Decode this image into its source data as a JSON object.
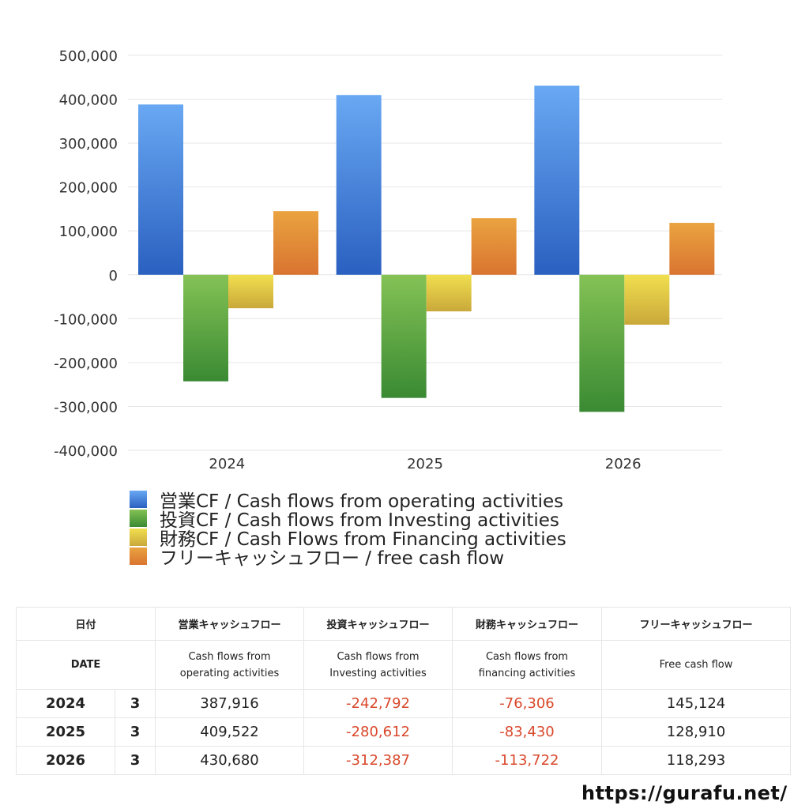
{
  "chart_data": {
    "type": "bar",
    "categories": [
      "2024",
      "2025",
      "2026"
    ],
    "series": [
      {
        "name": "営業CF / Cash flows from operating activities",
        "values": [
          387916,
          409522,
          430680
        ],
        "color_top": "#69a8f3",
        "color_bottom": "#2a60c0"
      },
      {
        "name": "投資CF / Cash flows from Investing activities",
        "values": [
          -242792,
          -280612,
          -312387
        ],
        "color_top": "#84c255",
        "color_bottom": "#3a8a33"
      },
      {
        "name": "財務CF / Cash Flows from Financing activities",
        "values": [
          -76306,
          -83430,
          -113722
        ],
        "color_top": "#f1df4f",
        "color_bottom": "#c9a83a"
      },
      {
        "name": "フリーキャッシュフロー / free cash flow",
        "values": [
          145124,
          128910,
          118293
        ],
        "color_top": "#eaa340",
        "color_bottom": "#d97430"
      }
    ],
    "ylim": [
      -400000,
      500000
    ],
    "yticks": [
      "500,000",
      "400,000",
      "300,000",
      "200,000",
      "100,000",
      "0",
      "-100,000",
      "-200,000",
      "-300,000",
      "-400,000"
    ],
    "ytick_values": [
      500000,
      400000,
      300000,
      200000,
      100000,
      0,
      -100000,
      -200000,
      -300000,
      -400000
    ],
    "grid": true,
    "legend_position": "bottom-left",
    "xlabel": "",
    "ylabel": "",
    "title": ""
  },
  "table": {
    "header_jp": [
      "日付",
      "営業キャッシュフロー",
      "投資キャッシュフロー",
      "財務キャッシュフロー",
      "フリーキャッシュフロー"
    ],
    "header_en": {
      "date": "DATE",
      "operating": [
        "Cash flows from",
        "operating activities"
      ],
      "investing": [
        "Cash flows from",
        "Investing activities"
      ],
      "financing": [
        "Cash flows from",
        "financing activities"
      ],
      "free": "Free cash flow"
    },
    "rows": [
      {
        "year": "2024",
        "month": "3",
        "operating": "387,916",
        "investing": "-242,792",
        "financing": "-76,306",
        "free": "145,124"
      },
      {
        "year": "2025",
        "month": "3",
        "operating": "409,522",
        "investing": "-280,612",
        "financing": "-83,430",
        "free": "128,910"
      },
      {
        "year": "2026",
        "month": "3",
        "operating": "430,680",
        "investing": "-312,387",
        "financing": "-113,722",
        "free": "118,293"
      }
    ]
  },
  "site_url": "https://gurafu.net/"
}
